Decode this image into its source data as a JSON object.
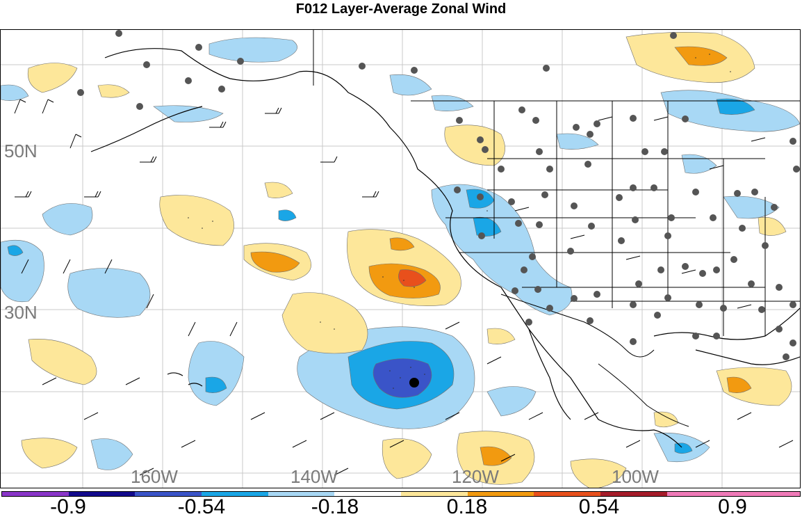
{
  "title": "F012 Layer-Average Zonal Wind",
  "lat_labels": [
    "50N",
    "30N"
  ],
  "lon_labels": [
    "160W",
    "140W",
    "120W",
    "100W"
  ],
  "colorbar": {
    "colors": [
      "#8a35c9",
      "#120a8c",
      "#3a54c8",
      "#1aa6e6",
      "#a8d8f5",
      "#ffffff",
      "#fde79a",
      "#f29a10",
      "#e8501c",
      "#a51c2a",
      "#f07ab8",
      "#f07ab8"
    ],
    "labels": [
      "-0.9",
      "-0.54",
      "-0.18",
      "0.18",
      "0.54",
      "0.9"
    ]
  },
  "legend_colors": {
    "light_blue": "#a8d8f5",
    "mid_blue": "#1aa6e6",
    "dark_blue": "#3a54c8",
    "light_yellow": "#fde79a",
    "orange": "#f29a10",
    "red_orange": "#e8501c"
  }
}
